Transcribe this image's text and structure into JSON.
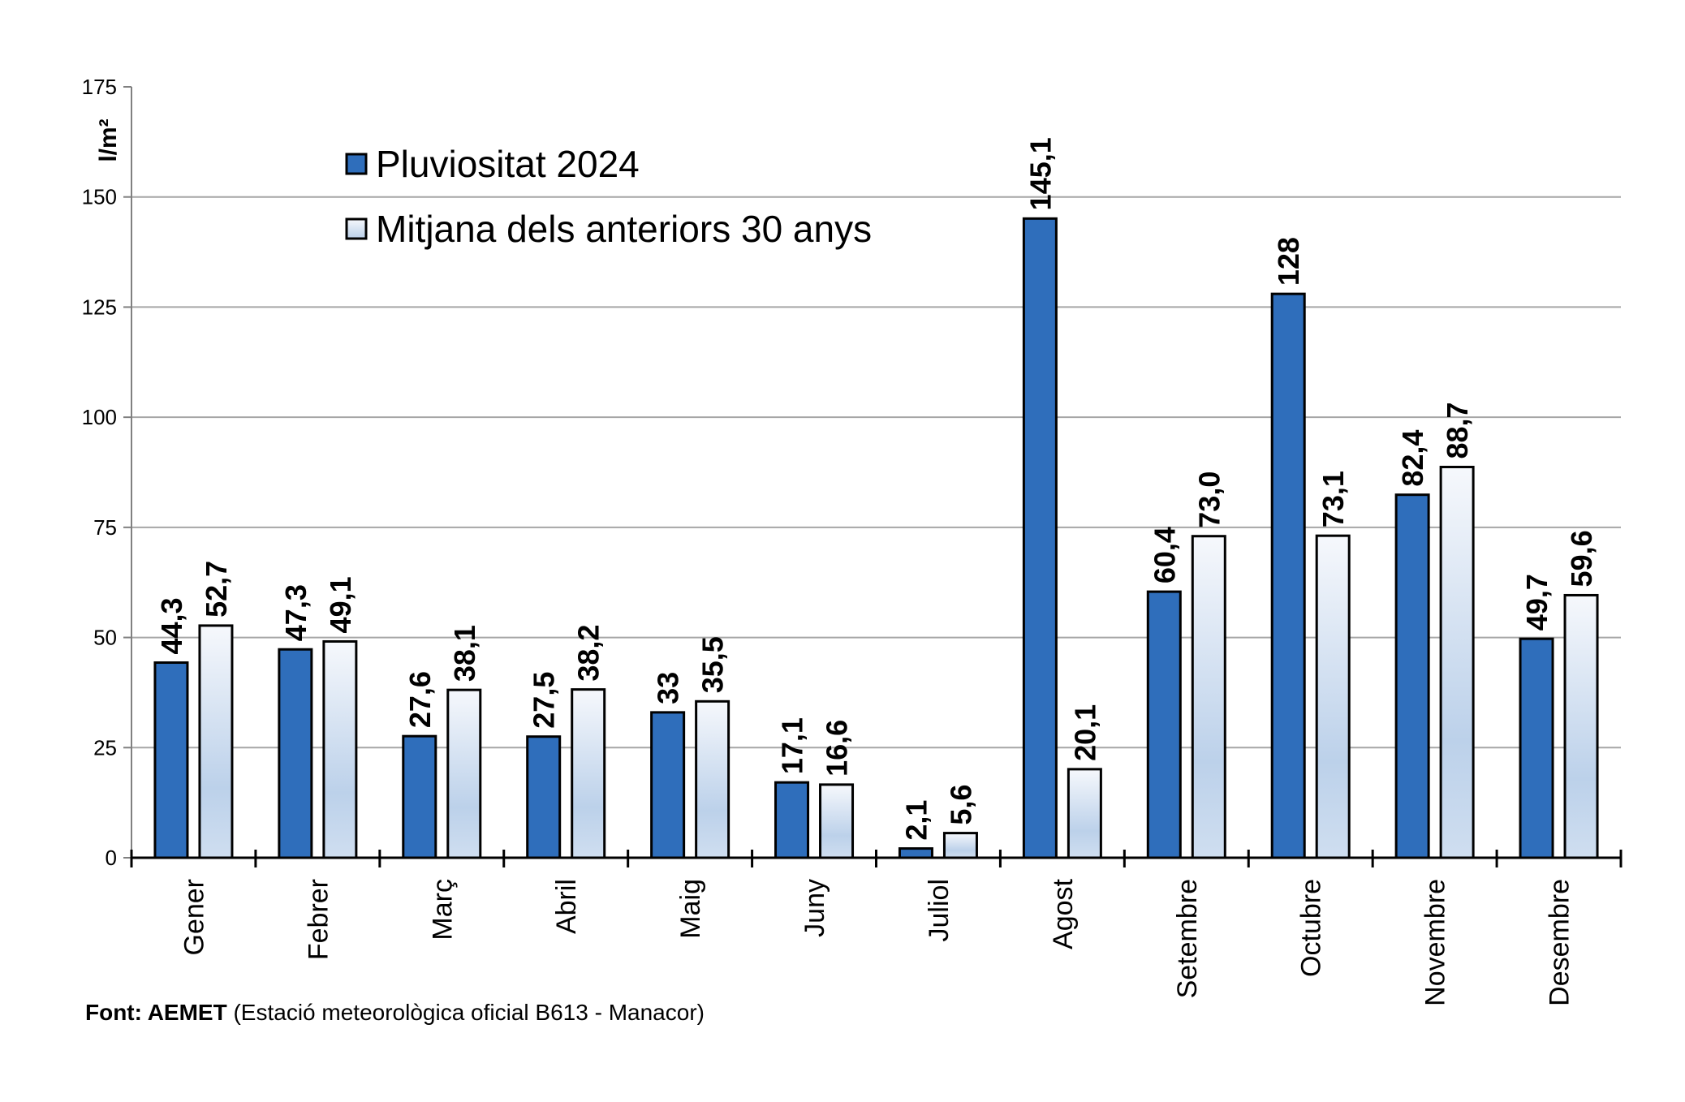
{
  "chart_data": {
    "type": "bar",
    "title": "",
    "xlabel": "",
    "ylabel": "l/m²",
    "ylim": [
      0,
      175
    ],
    "yticks": [
      0,
      25,
      50,
      75,
      100,
      125,
      150,
      175
    ],
    "grid": true,
    "legend_position": "top-left",
    "categories": [
      "Gener",
      "Febrer",
      "Març",
      "Abril",
      "Maig",
      "Juny",
      "Juliol",
      "Agost",
      "Setembre",
      "Octubre",
      "Novembre",
      "Desembre"
    ],
    "series": [
      {
        "name": "Pluviositat 2024",
        "color": "#2f6ebb",
        "values": [
          44.3,
          47.3,
          27.6,
          27.5,
          33,
          17.1,
          2.1,
          145.1,
          60.4,
          128,
          82.4,
          49.7
        ],
        "labels": [
          "44,3",
          "47,3",
          "27,6",
          "27,5",
          "33",
          "17,1",
          "2,1",
          "145,1",
          "60,4",
          "128",
          "82,4",
          "49,7"
        ]
      },
      {
        "name": "Mitjana dels anteriors 30 anys",
        "color_top": "#f6f8fc",
        "color_bottom": "#b9cfe8",
        "values": [
          52.7,
          49.1,
          38.1,
          38.2,
          35.5,
          16.6,
          5.6,
          20.1,
          73.0,
          73.1,
          88.7,
          59.6
        ],
        "labels": [
          "52,7",
          "49,1",
          "38,1",
          "38,2",
          "35,5",
          "16,6",
          "5,6",
          "20,1",
          "73,0",
          "73,1",
          "88,7",
          "59,6"
        ]
      }
    ]
  },
  "footnote": {
    "bold": "Font: AEMET",
    "text": " (Estació meteorològica oficial B613 - Manacor)"
  }
}
